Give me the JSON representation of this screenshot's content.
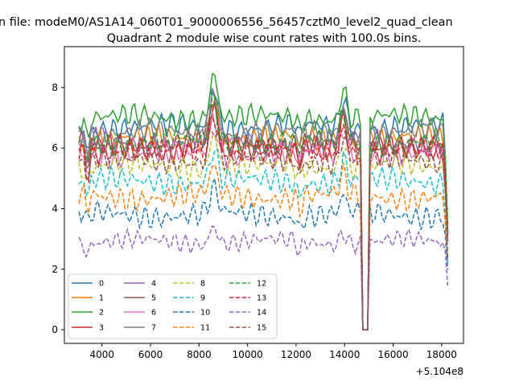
{
  "chart_data": {
    "type": "line",
    "suptitle": "n file: modeM0/AS1A14_060T01_9000006556_56457cztM0_level2_quad_clean",
    "title": "Quadrant 2 module wise count rates with 100.0s bins.",
    "xlabel": "",
    "ylabel": "",
    "x_offset_label": "+5.104e8",
    "xlim": [
      2450,
      18900
    ],
    "ylim": [
      -0.45,
      9.35
    ],
    "x_ticks": [
      4000,
      6000,
      8000,
      10000,
      12000,
      14000,
      16000,
      18000
    ],
    "x_tick_labels": [
      "4000",
      "6000",
      "8000",
      "10000",
      "12000",
      "14000",
      "16000",
      "18000"
    ],
    "y_ticks": [
      0,
      2,
      4,
      6,
      8
    ],
    "y_tick_labels": [
      "0",
      "2",
      "4",
      "6",
      "8"
    ],
    "grid": false,
    "legend_position": "lower-left",
    "legend_columns": 4,
    "x_range": [
      3050,
      18250
    ],
    "gap": [
      14700,
      15000
    ],
    "series": [
      {
        "name": "0",
        "color": "#1f77b4",
        "dash": "solid",
        "level": 6.7,
        "amp": 0.25
      },
      {
        "name": "1",
        "color": "#ff7f0e",
        "dash": "solid",
        "level": 6.3,
        "amp": 0.25
      },
      {
        "name": "2",
        "color": "#2ca02c",
        "dash": "solid",
        "level": 7.0,
        "amp": 0.25
      },
      {
        "name": "3",
        "color": "#d62728",
        "dash": "solid",
        "level": 6.0,
        "amp": 0.25
      },
      {
        "name": "4",
        "color": "#9467bd",
        "dash": "solid",
        "level": 6.2,
        "amp": 0.25
      },
      {
        "name": "5",
        "color": "#8c564b",
        "dash": "solid",
        "level": 6.1,
        "amp": 0.25
      },
      {
        "name": "6",
        "color": "#e377c2",
        "dash": "solid",
        "level": 5.8,
        "amp": 0.25
      },
      {
        "name": "7",
        "color": "#7f7f7f",
        "dash": "solid",
        "level": 6.5,
        "amp": 0.25
      },
      {
        "name": "8",
        "color": "#bcbd22",
        "dash": "dashed",
        "level": 5.4,
        "amp": 0.25
      },
      {
        "name": "9",
        "color": "#17becf",
        "dash": "dashed",
        "level": 4.9,
        "amp": 0.25
      },
      {
        "name": "10",
        "color": "#1f77b4",
        "dash": "dashed",
        "level": 3.8,
        "amp": 0.25
      },
      {
        "name": "11",
        "color": "#ff7f0e",
        "dash": "dashed",
        "level": 4.4,
        "amp": 0.25
      },
      {
        "name": "12",
        "color": "#2ca02c",
        "dash": "dashed",
        "level": 6.2,
        "amp": 0.25
      },
      {
        "name": "13",
        "color": "#d62728",
        "dash": "dashed",
        "level": 5.9,
        "amp": 0.25
      },
      {
        "name": "14",
        "color": "#9467bd",
        "dash": "dashed",
        "level": 2.9,
        "amp": 0.2
      },
      {
        "name": "15",
        "color": "#8c564b",
        "dash": "dashed",
        "level": 5.6,
        "amp": 0.25
      }
    ]
  }
}
